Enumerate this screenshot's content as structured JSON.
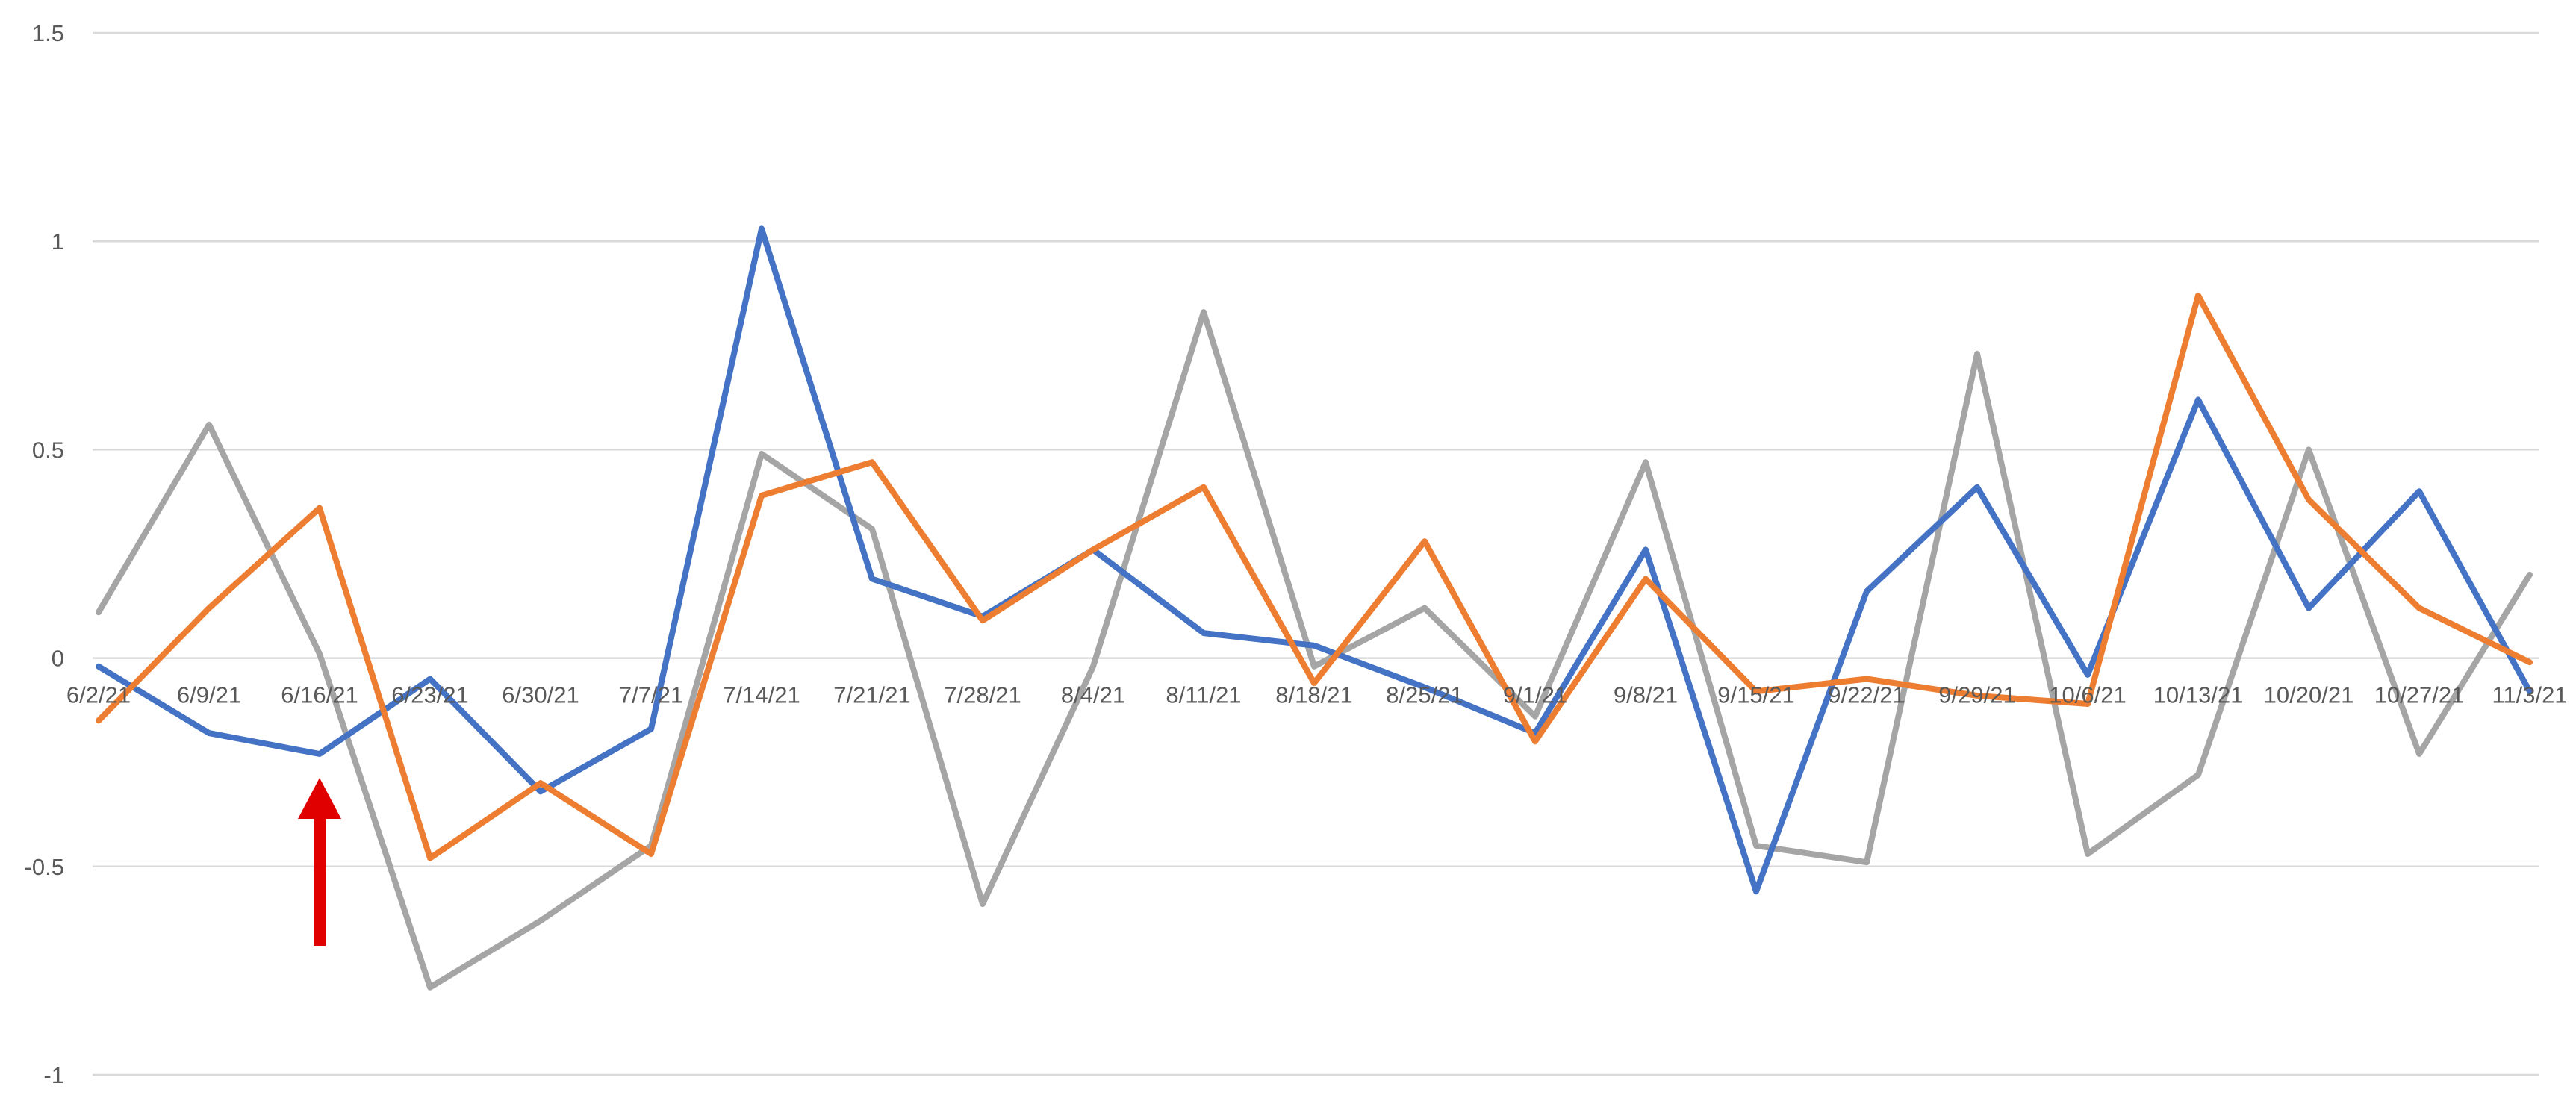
{
  "chart_data": {
    "type": "line",
    "categories": [
      "6/2/21",
      "6/9/21",
      "6/16/21",
      "6/23/21",
      "6/30/21",
      "7/7/21",
      "7/14/21",
      "7/21/21",
      "7/28/21",
      "8/4/21",
      "8/11/21",
      "8/18/21",
      "8/25/21",
      "9/1/21",
      "9/8/21",
      "9/15/21",
      "9/22/21",
      "9/29/21",
      "10/6/21",
      "10/13/21",
      "10/20/21",
      "10/27/21",
      "11/3/21"
    ],
    "series": [
      {
        "color": "#4472c4",
        "values": [
          -0.02,
          -0.18,
          -0.23,
          -0.05,
          -0.32,
          -0.17,
          1.03,
          0.19,
          0.1,
          0.26,
          0.06,
          0.03,
          -0.07,
          -0.18,
          0.26,
          -0.56,
          0.16,
          0.41,
          -0.04,
          0.62,
          0.12,
          0.4,
          -0.08
        ]
      },
      {
        "color": "#ed7d31",
        "values": [
          -0.15,
          0.12,
          0.36,
          -0.48,
          -0.3,
          -0.47,
          0.39,
          0.47,
          0.09,
          0.26,
          0.41,
          -0.06,
          0.28,
          -0.2,
          0.19,
          -0.08,
          -0.05,
          -0.09,
          -0.11,
          0.87,
          0.38,
          0.12,
          -0.01
        ]
      },
      {
        "color": "#a5a5a5",
        "values": [
          0.11,
          0.56,
          0.01,
          -0.79,
          -0.63,
          -0.45,
          0.49,
          0.31,
          -0.59,
          -0.02,
          0.83,
          -0.02,
          0.12,
          -0.14,
          0.47,
          -0.45,
          -0.49,
          0.73,
          -0.47,
          -0.28,
          0.5,
          -0.23,
          0.2
        ]
      }
    ],
    "ylim": [
      -1,
      1.5
    ],
    "yticks": [
      "-1",
      "-0.5",
      "0",
      "0.5",
      "1",
      "1.5"
    ],
    "grid": true,
    "legend": "none",
    "annotation": {
      "type": "arrow",
      "color": "#e00000",
      "pointing": "up",
      "at_category": "6/16/21"
    }
  }
}
